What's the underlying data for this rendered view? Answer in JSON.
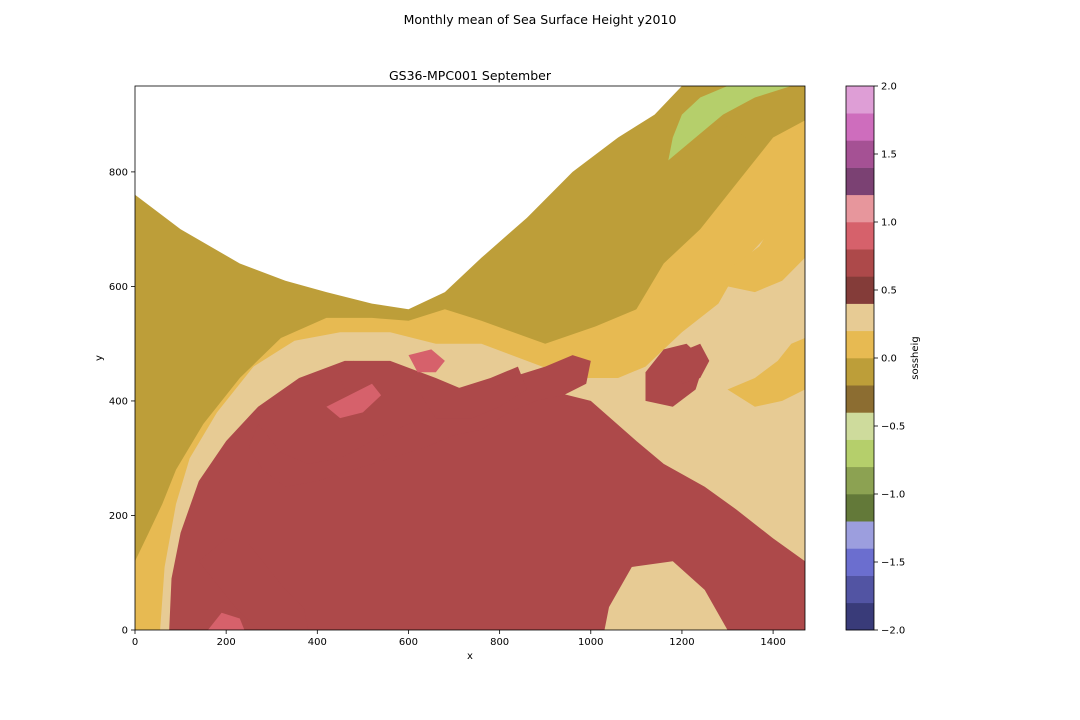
{
  "figure": {
    "suptitle": "Monthly mean of Sea Surface Height y2010"
  },
  "chart_data": {
    "type": "heatmap",
    "title": "GS36-MPC001 September",
    "xlabel": "x",
    "ylabel": "y",
    "xlim": [
      0,
      1470
    ],
    "ylim": [
      0,
      950
    ],
    "xticks": [
      0,
      200,
      400,
      600,
      800,
      1000,
      1200,
      1400
    ],
    "yticks": [
      0,
      200,
      400,
      600,
      800
    ],
    "colorbar": {
      "label": "sossheig",
      "range": [
        -2.0,
        2.0
      ],
      "ticks": [
        -2.0,
        -1.5,
        -1.0,
        -0.5,
        0.0,
        0.5,
        1.0,
        1.5,
        2.0
      ],
      "ticklabels": [
        "−2.0",
        "−1.5",
        "−1.0",
        "−0.5",
        "0.0",
        "0.5",
        "1.0",
        "1.5",
        "2.0"
      ],
      "level_colors": [
        "#393b79",
        "#5254a3",
        "#6b6ecf",
        "#9c9ede",
        "#637939",
        "#8ca252",
        "#b5cf6b",
        "#cedb9c",
        "#8c6d31",
        "#bd9e39",
        "#e7ba52",
        "#e7cb94",
        "#843c39",
        "#ad494a",
        "#d6616b",
        "#e7969c",
        "#7b4173",
        "#a55194",
        "#ce6dbd",
        "#de9ed6"
      ]
    },
    "land_color": "#ffffff",
    "regions": [
      {
        "level": -0.2,
        "points": [
          [
            0,
            760
          ],
          [
            100,
            700
          ],
          [
            230,
            640
          ],
          [
            330,
            610
          ],
          [
            420,
            590
          ],
          [
            520,
            570
          ],
          [
            600,
            560
          ],
          [
            680,
            590
          ],
          [
            760,
            650
          ],
          [
            860,
            720
          ],
          [
            960,
            800
          ],
          [
            1060,
            860
          ],
          [
            1140,
            900
          ],
          [
            1200,
            950
          ],
          [
            1470,
            950
          ],
          [
            1470,
            0
          ],
          [
            0,
            0
          ]
        ]
      },
      {
        "level": 0.1,
        "points": [
          [
            0,
            0
          ],
          [
            0,
            120
          ],
          [
            30,
            170
          ],
          [
            60,
            220
          ],
          [
            90,
            280
          ],
          [
            150,
            360
          ],
          [
            230,
            440
          ],
          [
            320,
            510
          ],
          [
            420,
            545
          ],
          [
            520,
            545
          ],
          [
            600,
            540
          ],
          [
            680,
            560
          ],
          [
            760,
            540
          ],
          [
            900,
            500
          ],
          [
            1010,
            530
          ],
          [
            1100,
            560
          ],
          [
            1160,
            640
          ],
          [
            1240,
            700
          ],
          [
            1330,
            790
          ],
          [
            1400,
            860
          ],
          [
            1470,
            890
          ],
          [
            1470,
            0
          ]
        ]
      },
      {
        "level": 0.3,
        "points": [
          [
            55,
            0
          ],
          [
            65,
            110
          ],
          [
            90,
            220
          ],
          [
            120,
            300
          ],
          [
            180,
            380
          ],
          [
            260,
            460
          ],
          [
            350,
            505
          ],
          [
            450,
            520
          ],
          [
            560,
            520
          ],
          [
            660,
            500
          ],
          [
            760,
            500
          ],
          [
            860,
            470
          ],
          [
            960,
            440
          ],
          [
            1060,
            440
          ],
          [
            1120,
            460
          ],
          [
            1200,
            520
          ],
          [
            1280,
            570
          ],
          [
            1330,
            640
          ],
          [
            1400,
            700
          ],
          [
            1470,
            760
          ],
          [
            1470,
            0
          ]
        ]
      },
      {
        "level": 0.6,
        "points": [
          [
            75,
            0
          ],
          [
            80,
            90
          ],
          [
            100,
            170
          ],
          [
            140,
            260
          ],
          [
            200,
            330
          ],
          [
            270,
            390
          ],
          [
            360,
            440
          ],
          [
            460,
            470
          ],
          [
            560,
            470
          ],
          [
            660,
            440
          ],
          [
            720,
            420
          ],
          [
            800,
            410
          ],
          [
            900,
            420
          ],
          [
            1000,
            400
          ],
          [
            1100,
            330
          ],
          [
            1160,
            290
          ],
          [
            1250,
            250
          ],
          [
            1320,
            210
          ],
          [
            1400,
            160
          ],
          [
            1470,
            120
          ],
          [
            1470,
            0
          ],
          [
            1300,
            0
          ],
          [
            1250,
            70
          ],
          [
            1180,
            120
          ],
          [
            1090,
            110
          ],
          [
            1040,
            40
          ],
          [
            1030,
            0
          ]
        ]
      },
      {
        "level": 0.7,
        "points": [
          [
            270,
            360
          ],
          [
            320,
            310
          ],
          [
            380,
            290
          ],
          [
            450,
            300
          ],
          [
            520,
            330
          ],
          [
            600,
            360
          ],
          [
            660,
            370
          ],
          [
            740,
            420
          ],
          [
            820,
            440
          ],
          [
            900,
            460
          ],
          [
            960,
            480
          ],
          [
            1000,
            470
          ],
          [
            990,
            430
          ],
          [
            940,
            410
          ],
          [
            880,
            400
          ],
          [
            820,
            380
          ],
          [
            760,
            350
          ],
          [
            700,
            340
          ],
          [
            640,
            320
          ],
          [
            560,
            300
          ],
          [
            480,
            280
          ],
          [
            400,
            260
          ],
          [
            330,
            250
          ],
          [
            280,
            280
          ],
          [
            250,
            320
          ]
        ]
      },
      {
        "level": 0.7,
        "points": [
          [
            140,
            120
          ],
          [
            180,
            80
          ],
          [
            220,
            40
          ],
          [
            270,
            0
          ],
          [
            380,
            0
          ],
          [
            370,
            40
          ],
          [
            330,
            70
          ],
          [
            290,
            110
          ],
          [
            250,
            150
          ],
          [
            200,
            160
          ]
        ]
      },
      {
        "level": 0.7,
        "points": [
          [
            440,
            460
          ],
          [
            480,
            470
          ],
          [
            520,
            440
          ],
          [
            540,
            410
          ],
          [
            500,
            400
          ],
          [
            460,
            420
          ]
        ]
      },
      {
        "level": 0.7,
        "points": [
          [
            620,
            420
          ],
          [
            700,
            420
          ],
          [
            780,
            440
          ],
          [
            840,
            460
          ],
          [
            860,
            420
          ],
          [
            800,
            390
          ],
          [
            740,
            370
          ],
          [
            660,
            370
          ]
        ]
      },
      {
        "level": 0.7,
        "points": [
          [
            1120,
            400
          ],
          [
            1180,
            390
          ],
          [
            1230,
            420
          ],
          [
            1250,
            470
          ],
          [
            1210,
            500
          ],
          [
            1160,
            490
          ],
          [
            1120,
            450
          ]
        ]
      },
      {
        "level": 0.85,
        "points": [
          [
            420,
            390
          ],
          [
            470,
            410
          ],
          [
            520,
            430
          ],
          [
            540,
            410
          ],
          [
            500,
            380
          ],
          [
            450,
            370
          ]
        ]
      },
      {
        "level": 0.85,
        "points": [
          [
            600,
            480
          ],
          [
            650,
            490
          ],
          [
            680,
            470
          ],
          [
            660,
            450
          ],
          [
            620,
            450
          ]
        ]
      },
      {
        "level": 0.85,
        "points": [
          [
            160,
            0
          ],
          [
            190,
            30
          ],
          [
            230,
            20
          ],
          [
            240,
            0
          ]
        ]
      },
      {
        "level": -0.6,
        "points": [
          [
            1170,
            820
          ],
          [
            1230,
            860
          ],
          [
            1290,
            900
          ],
          [
            1360,
            930
          ],
          [
            1440,
            950
          ],
          [
            1300,
            950
          ],
          [
            1240,
            930
          ],
          [
            1200,
            900
          ],
          [
            1180,
            860
          ]
        ]
      },
      {
        "level": -0.2,
        "points": [
          [
            1200,
            780
          ],
          [
            1250,
            800
          ],
          [
            1300,
            830
          ],
          [
            1340,
            860
          ],
          [
            1300,
            880
          ],
          [
            1250,
            860
          ],
          [
            1210,
            820
          ]
        ]
      },
      {
        "level": 0.1,
        "points": [
          [
            1260,
            620
          ],
          [
            1320,
            640
          ],
          [
            1370,
            670
          ],
          [
            1400,
            710
          ],
          [
            1430,
            740
          ],
          [
            1470,
            770
          ],
          [
            1470,
            650
          ],
          [
            1420,
            610
          ],
          [
            1360,
            590
          ],
          [
            1300,
            600
          ]
        ]
      },
      {
        "level": 0.1,
        "points": [
          [
            1300,
            420
          ],
          [
            1360,
            440
          ],
          [
            1410,
            470
          ],
          [
            1440,
            500
          ],
          [
            1470,
            510
          ],
          [
            1470,
            420
          ],
          [
            1420,
            400
          ],
          [
            1360,
            390
          ]
        ]
      },
      {
        "level": 0.6,
        "points": [
          [
            1200,
            430
          ],
          [
            1240,
            440
          ],
          [
            1260,
            470
          ],
          [
            1240,
            500
          ],
          [
            1210,
            490
          ],
          [
            1190,
            460
          ]
        ]
      }
    ]
  }
}
